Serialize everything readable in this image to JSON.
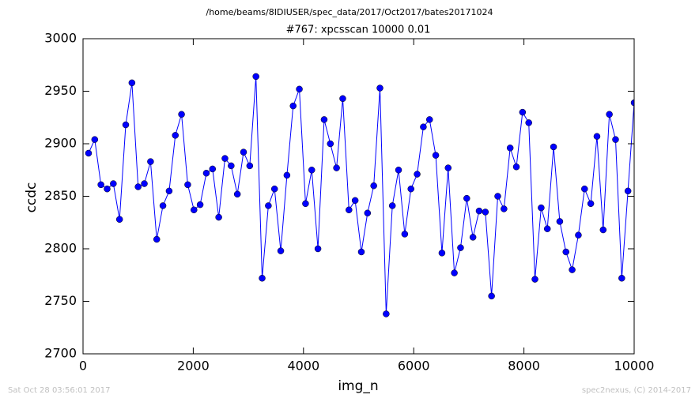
{
  "chart_data": {
    "type": "line",
    "suptitle": "/home/beams/8IDIUSER/spec_data/2017/Oct2017/bates20171024",
    "title": "#767: xpcsscan 10000 0.01",
    "x_label": "img_n",
    "y_label": "ccdc",
    "footer_left": "Sat Oct 28 03:56:01 2017",
    "footer_right": "spec2nexus, (C) 2014-2017",
    "xlim": [
      0,
      10000
    ],
    "xticks": [
      0,
      2000,
      4000,
      6000,
      8000,
      10000
    ],
    "ylim": [
      2700,
      3000
    ],
    "yticks": [
      2700,
      2750,
      2800,
      2850,
      2900,
      2950,
      3000
    ],
    "x": [
      100,
      212.5,
      325,
      437.5,
      550,
      662.5,
      775,
      887.5,
      1000,
      1112.5,
      1225,
      1337.5,
      1450,
      1562.5,
      1675,
      1787.5,
      1900,
      2012.5,
      2125,
      2237.5,
      2350,
      2462.5,
      2575,
      2687.5,
      2800,
      2912.5,
      3025,
      3137.5,
      3250,
      3362.5,
      3475,
      3587.5,
      3700,
      3812.5,
      3925,
      4037.5,
      4150,
      4262.5,
      4375,
      4487.5,
      4600,
      4712.5,
      4825,
      4937.5,
      5050,
      5162.5,
      5275,
      5387.5,
      5500,
      5612.5,
      5725,
      5837.5,
      5950,
      6062.5,
      6175,
      6287.5,
      6400,
      6512.5,
      6625,
      6737.5,
      6850,
      6962.5,
      7075,
      7187.5,
      7300,
      7412.5,
      7525,
      7637.5,
      7750,
      7862.5,
      7975,
      8087.5,
      8200,
      8312.5,
      8425,
      8537.5,
      8650,
      8762.5,
      8875,
      8987.5,
      9100,
      9212.5,
      9325,
      9437.5,
      9550,
      9662.5,
      9775,
      9887.5,
      10000
    ],
    "series": [
      {
        "color": "#0000ff",
        "values": [
          2891,
          2904,
          2861,
          2857,
          2862,
          2828,
          2918,
          2958,
          2859,
          2862,
          2883,
          2809,
          2841,
          2855,
          2908,
          2928,
          2861,
          2837,
          2842,
          2872,
          2876,
          2830,
          2886,
          2879,
          2852,
          2892,
          2879,
          2964,
          2772,
          2841,
          2857,
          2798,
          2870,
          2936,
          2952,
          2843,
          2875,
          2800,
          2923,
          2900,
          2877,
          2943,
          2837,
          2846,
          2797,
          2834,
          2860,
          2953,
          2738,
          2841,
          2875,
          2814,
          2857,
          2871,
          2916,
          2923,
          2889,
          2796,
          2877,
          2777,
          2801,
          2848,
          2811,
          2836,
          2835,
          2755,
          2850,
          2838,
          2896,
          2878,
          2930,
          2920,
          2771,
          2839,
          2819,
          2897,
          2826,
          2797,
          2780,
          2813,
          2857,
          2843,
          2907,
          2818,
          2928,
          2904,
          2772,
          2855,
          2939
        ]
      }
    ]
  }
}
